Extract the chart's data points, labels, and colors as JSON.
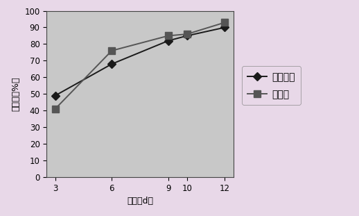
{
  "x": [
    3,
    6,
    9,
    10,
    12
  ],
  "series": [
    {
      "label": "阳性对照",
      "y": [
        49,
        68,
        82,
        85,
        90
      ],
      "color": "#1a1a1a",
      "marker": "D",
      "markersize": 6,
      "linewidth": 1.4
    },
    {
      "label": "生物膜",
      "y": [
        41,
        76,
        85,
        86,
        93
      ],
      "color": "#555555",
      "marker": "s",
      "markersize": 7,
      "linewidth": 1.4
    }
  ],
  "xlabel": "时间（d）",
  "ylabel": "愈合率（%）",
  "ylim": [
    0,
    100
  ],
  "yticks": [
    0,
    10,
    20,
    30,
    40,
    50,
    60,
    70,
    80,
    90,
    100
  ],
  "xticks": [
    3,
    6,
    9,
    10,
    12
  ],
  "plot_bg_color": "#c8c8c8",
  "fig_bg_color": "#e8d8e8",
  "label_fontsize": 9,
  "tick_fontsize": 8.5,
  "legend_fontsize": 9
}
